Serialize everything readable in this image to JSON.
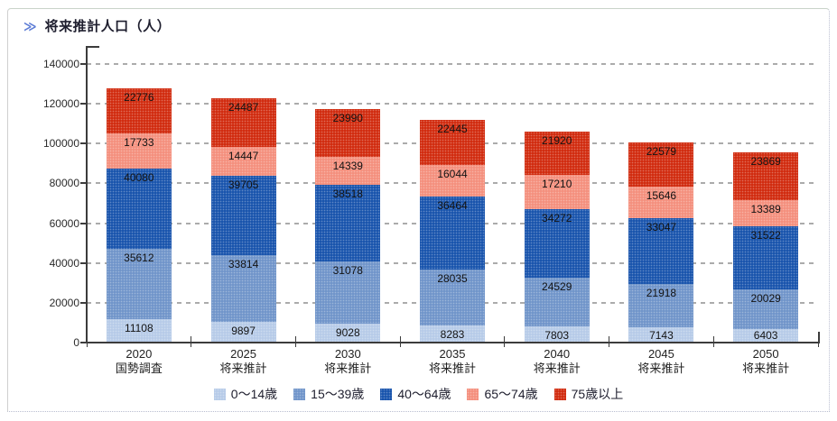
{
  "header": {
    "icon": "≫",
    "title": "将来推計人口（人）"
  },
  "chart_data": {
    "type": "bar",
    "stacked": true,
    "title": "将来推計人口（人）",
    "categories": [
      {
        "year": "2020",
        "note": "国勢調査"
      },
      {
        "year": "2025",
        "note": "将来推計"
      },
      {
        "year": "2030",
        "note": "将来推計"
      },
      {
        "year": "2035",
        "note": "将来推計"
      },
      {
        "year": "2040",
        "note": "将来推計"
      },
      {
        "year": "2045",
        "note": "将来推計"
      },
      {
        "year": "2050",
        "note": "将来推計"
      }
    ],
    "series": [
      {
        "name": "0〜14歳",
        "color": "#b7cbe8",
        "values": [
          11108,
          9897,
          9028,
          8283,
          7803,
          7143,
          6403
        ]
      },
      {
        "name": "15〜39歳",
        "color": "#7195ca",
        "values": [
          35612,
          33814,
          31078,
          28035,
          24529,
          21918,
          20029
        ]
      },
      {
        "name": "40〜64歳",
        "color": "#1a55ad",
        "values": [
          40080,
          39705,
          38518,
          36464,
          34272,
          33047,
          31522
        ]
      },
      {
        "name": "65〜74歳",
        "color": "#f4907e",
        "values": [
          17733,
          14447,
          14339,
          16044,
          17210,
          15646,
          13389
        ]
      },
      {
        "name": "75歳以上",
        "color": "#d12c10",
        "values": [
          22776,
          24487,
          23990,
          22445,
          21920,
          22579,
          23869
        ]
      }
    ],
    "y_ticks": [
      0,
      20000,
      40000,
      60000,
      80000,
      100000,
      120000,
      140000
    ],
    "ylim": [
      0,
      140000
    ],
    "grid": "horizontal-dashed",
    "legend_position": "bottom"
  }
}
